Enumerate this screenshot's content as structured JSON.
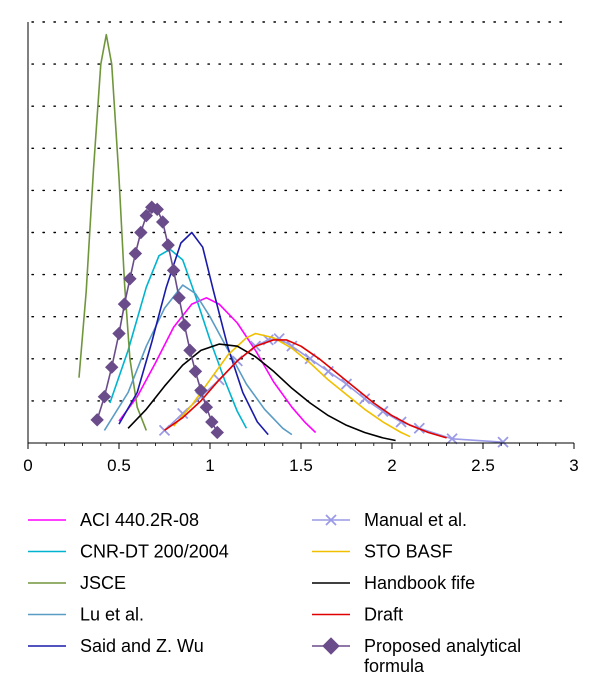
{
  "chart_data": {
    "type": "line",
    "title": "",
    "xlabel": "",
    "ylabel": "",
    "xlim": [
      0,
      3
    ],
    "ylim": [
      0,
      10
    ],
    "x_ticks": [
      "0",
      "0.5",
      "1",
      "1.5",
      "2",
      "2.5",
      "3"
    ],
    "y_ticks": [],
    "grid": "dotted horizontal lines",
    "legend_position": "bottom, two columns",
    "series": [
      {
        "name": "ACI 440.2R-08",
        "color": "#ff00ff",
        "marker": "none",
        "points": [
          [
            0.5,
            0.52
          ],
          [
            0.6,
            1.1
          ],
          [
            0.7,
            1.9
          ],
          [
            0.8,
            2.75
          ],
          [
            0.9,
            3.3
          ],
          [
            0.98,
            3.45
          ],
          [
            1.05,
            3.3
          ],
          [
            1.15,
            2.85
          ],
          [
            1.25,
            2.2
          ],
          [
            1.35,
            1.45
          ],
          [
            1.45,
            0.85
          ],
          [
            1.52,
            0.5
          ],
          [
            1.58,
            0.25
          ]
        ]
      },
      {
        "name": "CNR-DT 200/2004",
        "color": "#00b4d0",
        "marker": "none",
        "points": [
          [
            0.45,
            0.95
          ],
          [
            0.55,
            2.2
          ],
          [
            0.65,
            3.7
          ],
          [
            0.72,
            4.45
          ],
          [
            0.78,
            4.6
          ],
          [
            0.85,
            4.35
          ],
          [
            0.92,
            3.5
          ],
          [
            1.0,
            2.45
          ],
          [
            1.08,
            1.5
          ],
          [
            1.15,
            0.75
          ],
          [
            1.2,
            0.35
          ]
        ]
      },
      {
        "name": "JSCE",
        "color": "#70963c",
        "marker": "none",
        "points": [
          [
            0.28,
            1.55
          ],
          [
            0.32,
            3.6
          ],
          [
            0.36,
            6.5
          ],
          [
            0.4,
            9.0
          ],
          [
            0.43,
            9.7
          ],
          [
            0.46,
            9.0
          ],
          [
            0.5,
            6.3
          ],
          [
            0.53,
            3.8
          ],
          [
            0.56,
            2.0
          ],
          [
            0.6,
            0.85
          ],
          [
            0.65,
            0.3
          ]
        ]
      },
      {
        "name": "Lu et al.",
        "color": "#5b9cc4",
        "marker": "none",
        "points": [
          [
            0.42,
            0.3
          ],
          [
            0.55,
            1.2
          ],
          [
            0.65,
            2.3
          ],
          [
            0.75,
            3.2
          ],
          [
            0.85,
            3.75
          ],
          [
            0.92,
            3.55
          ],
          [
            1.0,
            3.0
          ],
          [
            1.1,
            2.2
          ],
          [
            1.2,
            1.4
          ],
          [
            1.3,
            0.8
          ],
          [
            1.4,
            0.35
          ],
          [
            1.45,
            0.2
          ]
        ]
      },
      {
        "name": "Said and Z. Wu",
        "color": "#1a1aaa",
        "marker": "none",
        "points": [
          [
            0.5,
            0.45
          ],
          [
            0.6,
            1.2
          ],
          [
            0.68,
            2.4
          ],
          [
            0.76,
            3.7
          ],
          [
            0.84,
            4.75
          ],
          [
            0.9,
            5.0
          ],
          [
            0.96,
            4.65
          ],
          [
            1.02,
            3.6
          ],
          [
            1.1,
            2.25
          ],
          [
            1.18,
            1.2
          ],
          [
            1.26,
            0.5
          ],
          [
            1.32,
            0.2
          ]
        ]
      },
      {
        "name": "Manual et al.",
        "color": "#9a9ae6",
        "marker": "x",
        "points": [
          [
            0.75,
            0.3
          ],
          [
            0.85,
            0.7
          ],
          [
            0.95,
            1.1
          ],
          [
            1.05,
            1.5
          ],
          [
            1.15,
            1.95
          ],
          [
            1.25,
            2.3
          ],
          [
            1.32,
            2.45
          ],
          [
            1.38,
            2.48
          ],
          [
            1.45,
            2.3
          ],
          [
            1.55,
            2.0
          ],
          [
            1.65,
            1.7
          ],
          [
            1.75,
            1.4
          ],
          [
            1.85,
            1.05
          ],
          [
            1.95,
            0.75
          ],
          [
            2.05,
            0.5
          ],
          [
            2.15,
            0.35
          ],
          [
            2.33,
            0.1
          ],
          [
            2.61,
            0.02
          ]
        ]
      },
      {
        "name": "STO BASF",
        "color": "#f0c000",
        "marker": "none",
        "points": [
          [
            0.8,
            0.4
          ],
          [
            0.9,
            0.9
          ],
          [
            1.0,
            1.5
          ],
          [
            1.1,
            2.1
          ],
          [
            1.2,
            2.5
          ],
          [
            1.25,
            2.6
          ],
          [
            1.35,
            2.5
          ],
          [
            1.45,
            2.25
          ],
          [
            1.55,
            1.9
          ],
          [
            1.65,
            1.5
          ],
          [
            1.75,
            1.15
          ],
          [
            1.85,
            0.8
          ],
          [
            1.95,
            0.5
          ],
          [
            2.05,
            0.25
          ],
          [
            2.1,
            0.15
          ]
        ]
      },
      {
        "name": "Handbook fife",
        "color": "#000000",
        "marker": "none",
        "points": [
          [
            0.55,
            0.35
          ],
          [
            0.65,
            0.8
          ],
          [
            0.75,
            1.35
          ],
          [
            0.85,
            1.85
          ],
          [
            0.95,
            2.2
          ],
          [
            1.05,
            2.35
          ],
          [
            1.15,
            2.3
          ],
          [
            1.25,
            2.05
          ],
          [
            1.35,
            1.7
          ],
          [
            1.45,
            1.3
          ],
          [
            1.55,
            0.95
          ],
          [
            1.65,
            0.65
          ],
          [
            1.75,
            0.42
          ],
          [
            1.85,
            0.25
          ],
          [
            1.95,
            0.12
          ],
          [
            2.02,
            0.06
          ]
        ]
      },
      {
        "name": "Draft",
        "color": "#e00000",
        "marker": "none",
        "points": [
          [
            0.75,
            0.3
          ],
          [
            0.85,
            0.6
          ],
          [
            0.95,
            1.0
          ],
          [
            1.05,
            1.5
          ],
          [
            1.15,
            1.95
          ],
          [
            1.25,
            2.3
          ],
          [
            1.35,
            2.45
          ],
          [
            1.42,
            2.45
          ],
          [
            1.5,
            2.3
          ],
          [
            1.6,
            2.0
          ],
          [
            1.7,
            1.65
          ],
          [
            1.8,
            1.3
          ],
          [
            1.9,
            0.95
          ],
          [
            2.0,
            0.65
          ],
          [
            2.1,
            0.42
          ],
          [
            2.2,
            0.25
          ],
          [
            2.3,
            0.12
          ]
        ]
      },
      {
        "name": "Proposed analytical formula",
        "color": "#6a4c8a",
        "marker": "diamond",
        "points": [
          [
            0.38,
            0.55
          ],
          [
            0.42,
            1.1
          ],
          [
            0.46,
            1.8
          ],
          [
            0.5,
            2.6
          ],
          [
            0.53,
            3.3
          ],
          [
            0.56,
            3.9
          ],
          [
            0.59,
            4.5
          ],
          [
            0.62,
            5.0
          ],
          [
            0.65,
            5.4
          ],
          [
            0.68,
            5.6
          ],
          [
            0.71,
            5.55
          ],
          [
            0.74,
            5.25
          ],
          [
            0.77,
            4.7
          ],
          [
            0.8,
            4.1
          ],
          [
            0.83,
            3.45
          ],
          [
            0.86,
            2.8
          ],
          [
            0.89,
            2.2
          ],
          [
            0.92,
            1.7
          ],
          [
            0.95,
            1.25
          ],
          [
            0.98,
            0.85
          ],
          [
            1.01,
            0.5
          ],
          [
            1.04,
            0.25
          ]
        ]
      }
    ]
  }
}
